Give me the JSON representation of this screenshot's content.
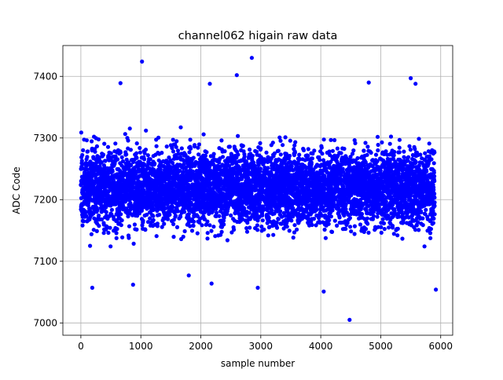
{
  "chart_data": {
    "type": "scatter",
    "title": "channel062 higain raw data",
    "xlabel": "sample number",
    "ylabel": "ADC Code",
    "xlim": [
      -300,
      6200
    ],
    "ylim": [
      6980,
      7450
    ],
    "xticks": [
      0,
      1000,
      2000,
      3000,
      4000,
      5000,
      6000
    ],
    "yticks": [
      7000,
      7100,
      7200,
      7300,
      7400
    ],
    "grid": true,
    "marker_color": "#0000ff",
    "series": [
      {
        "n_points": 5900,
        "x_range": [
          0,
          5900
        ],
        "baseline_value": 7220,
        "spread_std": 42,
        "outliers": [
          {
            "x": 1020,
            "y": 7424
          },
          {
            "x": 2850,
            "y": 7430
          },
          {
            "x": 2600,
            "y": 7402
          },
          {
            "x": 660,
            "y": 7389
          },
          {
            "x": 2150,
            "y": 7388
          },
          {
            "x": 4800,
            "y": 7390
          },
          {
            "x": 5500,
            "y": 7397
          },
          {
            "x": 5580,
            "y": 7388
          },
          {
            "x": 4480,
            "y": 7005
          },
          {
            "x": 5920,
            "y": 7054
          },
          {
            "x": 4050,
            "y": 7051
          },
          {
            "x": 190,
            "y": 7057
          },
          {
            "x": 2950,
            "y": 7057
          },
          {
            "x": 1800,
            "y": 7077
          },
          {
            "x": 870,
            "y": 7062
          },
          {
            "x": 2180,
            "y": 7064
          }
        ]
      }
    ]
  }
}
